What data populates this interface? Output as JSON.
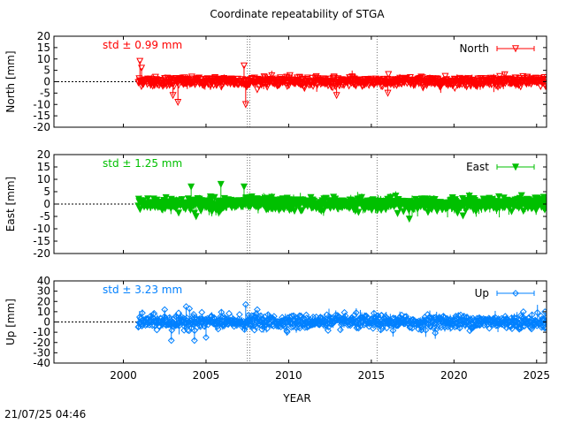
{
  "title": "Coordinate repeatability of STGA",
  "xlabel": "YEAR",
  "timestamp": "21/07/25 04:46",
  "chart_data": [
    {
      "type": "scatter",
      "panel": "north",
      "series_name": "North",
      "ylabel": "North [mm]",
      "std_label": "std ± 0.99 mm",
      "color": "#ff0000",
      "marker": "open-triangle-down",
      "xlim": [
        1995.8,
        2025.6
      ],
      "ylim": [
        -20,
        20
      ],
      "yticks": [
        20,
        15,
        10,
        5,
        0,
        -5,
        -10,
        -15,
        -20
      ],
      "ytick_labels": [
        "20",
        "15",
        "10",
        "5",
        "0",
        "-5",
        "-10",
        "-15",
        "-20"
      ],
      "xticks": [
        2000,
        2005,
        2010,
        2015,
        2020,
        2025
      ],
      "xtick_labels": [],
      "data_start": 2000.9,
      "data_end": 2025.6,
      "std": 0.99,
      "outliers": [
        [
          2001.0,
          9
        ],
        [
          2001.1,
          6
        ],
        [
          2003.0,
          -6
        ],
        [
          2003.3,
          -9
        ],
        [
          2007.3,
          7
        ],
        [
          2007.4,
          -10
        ],
        [
          2012.9,
          -6
        ],
        [
          2016.0,
          -5
        ]
      ],
      "reference_line": 0,
      "grid": false,
      "legend": "top-right"
    },
    {
      "type": "scatter",
      "panel": "east",
      "series_name": "East",
      "ylabel": "East [mm]",
      "std_label": "std ± 1.25 mm",
      "color": "#00c000",
      "marker": "filled-triangle-down",
      "xlim": [
        1995.8,
        2025.6
      ],
      "ylim": [
        -20,
        20
      ],
      "yticks": [
        20,
        15,
        10,
        5,
        0,
        -5,
        -10,
        -15,
        -20
      ],
      "ytick_labels": [
        "20",
        "15",
        "10",
        "5",
        "0",
        "-5",
        "-10",
        "-15",
        "-20"
      ],
      "xticks": [
        2000,
        2005,
        2010,
        2015,
        2020,
        2025
      ],
      "xtick_labels": [],
      "data_start": 2000.9,
      "data_end": 2025.6,
      "std": 1.25,
      "outliers": [
        [
          2004.1,
          7
        ],
        [
          2004.4,
          -5
        ],
        [
          2005.9,
          8
        ],
        [
          2007.3,
          7
        ],
        [
          2017.3,
          -6
        ]
      ],
      "reference_line": 0,
      "grid": false,
      "legend": "top-right"
    },
    {
      "type": "scatter",
      "panel": "up",
      "series_name": "Up",
      "ylabel": "Up [mm]",
      "std_label": "std ± 3.23 mm",
      "color": "#0080ff",
      "marker": "open-diamond",
      "xlim": [
        1995.8,
        2025.6
      ],
      "ylim": [
        -40,
        40
      ],
      "yticks": [
        40,
        30,
        20,
        10,
        0,
        -10,
        -20,
        -30,
        -40
      ],
      "ytick_labels": [
        "40",
        "30",
        "20",
        "10",
        "0",
        "-10",
        "-20",
        "-30",
        "-40"
      ],
      "xticks": [
        2000,
        2005,
        2010,
        2015,
        2020,
        2025
      ],
      "xtick_labels": [
        "2000",
        "2005",
        "2010",
        "2015",
        "2020",
        "2025"
      ],
      "data_start": 2000.9,
      "data_end": 2025.6,
      "std": 3.23,
      "outliers": [
        [
          2002.5,
          12
        ],
        [
          2002.9,
          -18
        ],
        [
          2003.8,
          15
        ],
        [
          2004.0,
          13
        ],
        [
          2004.3,
          -18
        ],
        [
          2005.0,
          -15
        ],
        [
          2007.4,
          17
        ],
        [
          2008.1,
          12
        ],
        [
          2024.2,
          10
        ],
        [
          2025.5,
          10
        ]
      ],
      "reference_line": 0,
      "grid": false,
      "legend": "top-right"
    }
  ],
  "vertical_markers": [
    2007.5,
    2007.65,
    2015.35
  ]
}
